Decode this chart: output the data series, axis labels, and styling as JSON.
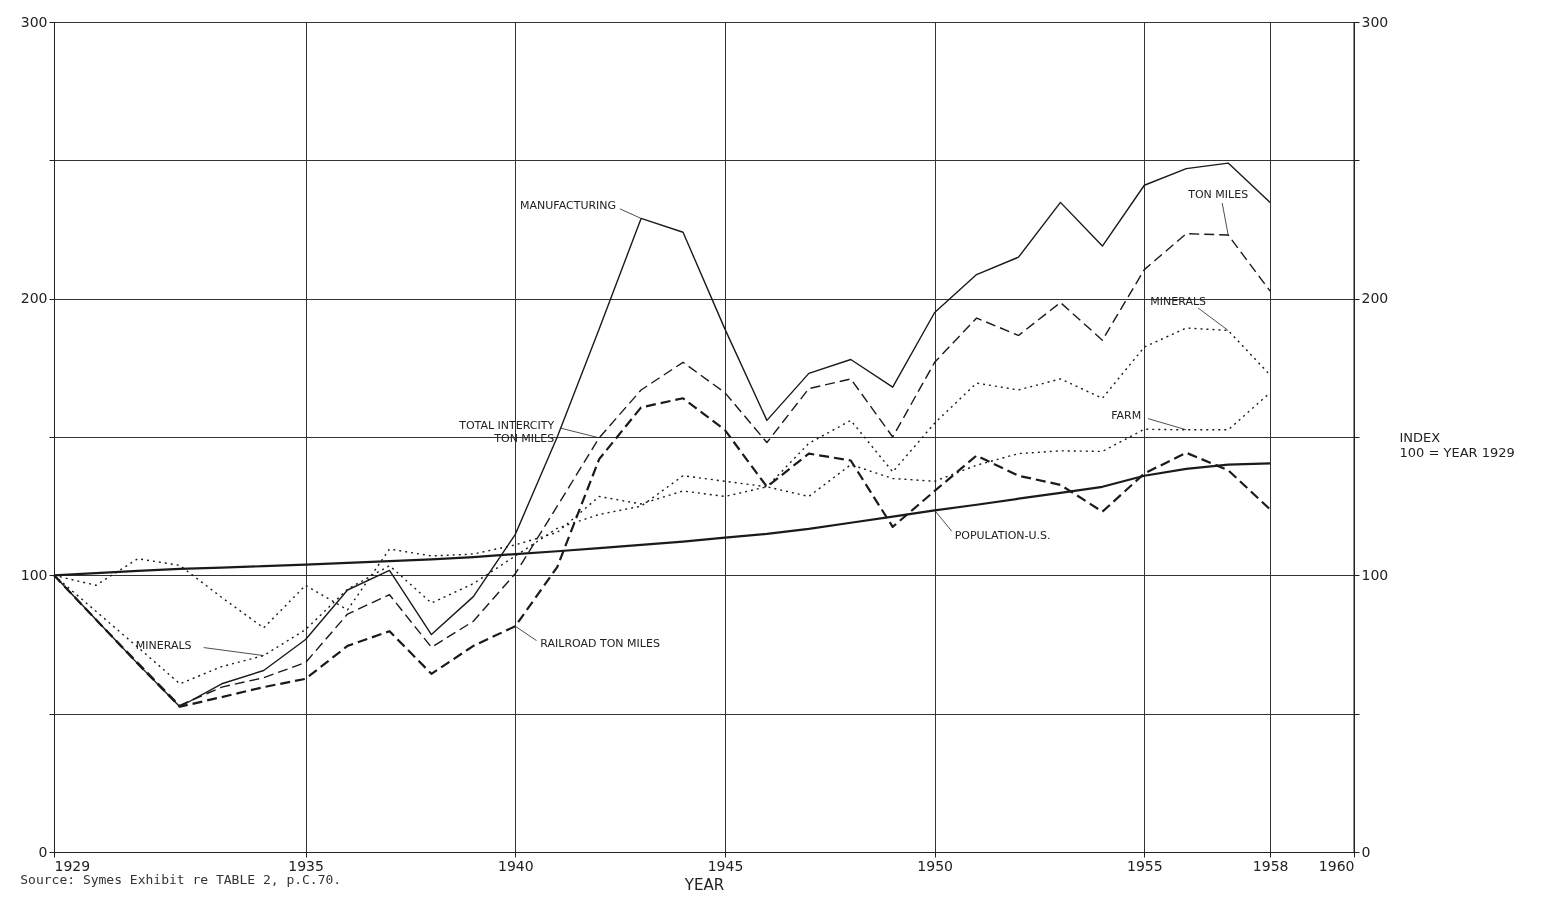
{
  "chart_data": {
    "type": "line",
    "xlabel": "YEAR",
    "y2label": "INDEX\n100 = YEAR 1929",
    "x": [
      1929,
      1930,
      1931,
      1932,
      1933,
      1934,
      1935,
      1936,
      1937,
      1938,
      1939,
      1940,
      1941,
      1942,
      1943,
      1944,
      1945,
      1946,
      1947,
      1948,
      1949,
      1950,
      1951,
      1952,
      1953,
      1954,
      1955,
      1956,
      1957,
      1958
    ],
    "series": [
      {
        "color": "#1a1a1a",
        "line_style": "solid",
        "values": [
          100,
          84,
          68,
          52.5,
          60.8,
          65.6,
          76.8,
          94.7,
          101.8,
          78.6,
          92.3,
          114.8,
          150,
          189,
          229,
          224,
          189,
          156,
          173,
          178,
          168,
          195,
          208.7,
          215,
          234.8,
          219,
          241,
          247,
          249,
          234.8
        ]
      },
      {
        "color": "#1a1a1a",
        "line_style": "dashed",
        "values": [
          100,
          84,
          68.5,
          53,
          59.6,
          63,
          68.5,
          86,
          93,
          74,
          83.4,
          100.6,
          125,
          149.7,
          167,
          177,
          166,
          148,
          167.5,
          171,
          150,
          177,
          193,
          186.7,
          198.6,
          185,
          210.5,
          223.5,
          223,
          202.7
        ]
      },
      {
        "color": "#1a1a1a",
        "line_style": "dotted",
        "values": [
          100,
          87,
          74,
          60.8,
          67,
          71,
          80.4,
          95,
          103.5,
          90,
          97,
          107,
          117,
          122,
          125,
          136,
          134,
          132,
          147.7,
          156,
          137.4,
          155,
          169.5,
          167,
          171,
          164,
          182.5,
          189.4,
          188.5,
          172.4
        ]
      },
      {
        "color": "#1a1a1a",
        "line_style": "dotted",
        "values": [
          100,
          96.4,
          106,
          103.6,
          92,
          81,
          96.4,
          87.5,
          109.5,
          107,
          107.7,
          111,
          115.5,
          128.5,
          125.8,
          130.5,
          128.5,
          132,
          128.5,
          140,
          135,
          134,
          139.8,
          144,
          145,
          144.8,
          152.8,
          152.6,
          152.6,
          166
        ]
      },
      {
        "color": "#1a1a1a",
        "line_style": "dashed",
        "values": [
          100,
          84,
          68,
          52.5,
          56,
          59.6,
          62.6,
          74.5,
          79.8,
          64.4,
          74.5,
          81.6,
          103,
          142,
          160.7,
          164,
          152.5,
          132,
          144,
          141.5,
          117.5,
          130.5,
          143.3,
          136,
          132.7,
          123,
          136.8,
          144.3,
          138,
          123.8
        ]
      },
      {
        "color": "#1a1a1a",
        "line_style": "solid",
        "values": [
          100,
          100.8,
          101.6,
          102.3,
          102.8,
          103.3,
          103.9,
          104.5,
          105.1,
          105.8,
          106.6,
          107.7,
          108.7,
          109.8,
          111,
          112.2,
          113.6,
          115,
          116.8,
          119,
          121.2,
          123.5,
          125.5,
          127.7,
          129.8,
          132,
          136,
          138.5,
          140,
          140.5
        ]
      }
    ],
    "xlim": [
      1929,
      1960
    ],
    "xticks": [
      1929,
      1935,
      1940,
      1945,
      1950,
      1955,
      1958,
      1960
    ],
    "ylim": [
      0,
      300
    ],
    "yticks": [
      0,
      {
        "value": 50,
        "label": null
      },
      100,
      {
        "value": 150,
        "label": null
      },
      200,
      {
        "value": 250,
        "label": null
      },
      300
    ],
    "y2lim": [
      0,
      300
    ],
    "y2ticks": [
      0,
      {
        "value": 50,
        "label": null
      },
      100,
      {
        "value": 150,
        "label": null
      },
      200,
      {
        "value": 250,
        "label": null
      },
      300
    ],
    "grid": true,
    "annotations": [
      {
        "text": "MANUFACTURING",
        "x": 1943,
        "y": 229
      },
      {
        "text": "TON MILES",
        "x": 1957,
        "y": 223
      },
      {
        "text": "MINERALS",
        "x": 1957,
        "y": 188.5
      },
      {
        "text": "FARM",
        "x": 1956,
        "y": 152.6
      },
      {
        "text": "TOTAL INTERCITY\nTON MILES",
        "x": 1942,
        "y": 149.7
      },
      {
        "text": "POPULATION-U.S.",
        "x": 1950,
        "y": 123.5
      },
      {
        "text": "RAILROAD TON MILES",
        "x": 1940,
        "y": 81.6
      },
      {
        "text": "MINERALS",
        "x": 1934,
        "y": 71
      },
      "Source: Symes Exhibit re TABLE 2, p.C.70."
    ]
  }
}
